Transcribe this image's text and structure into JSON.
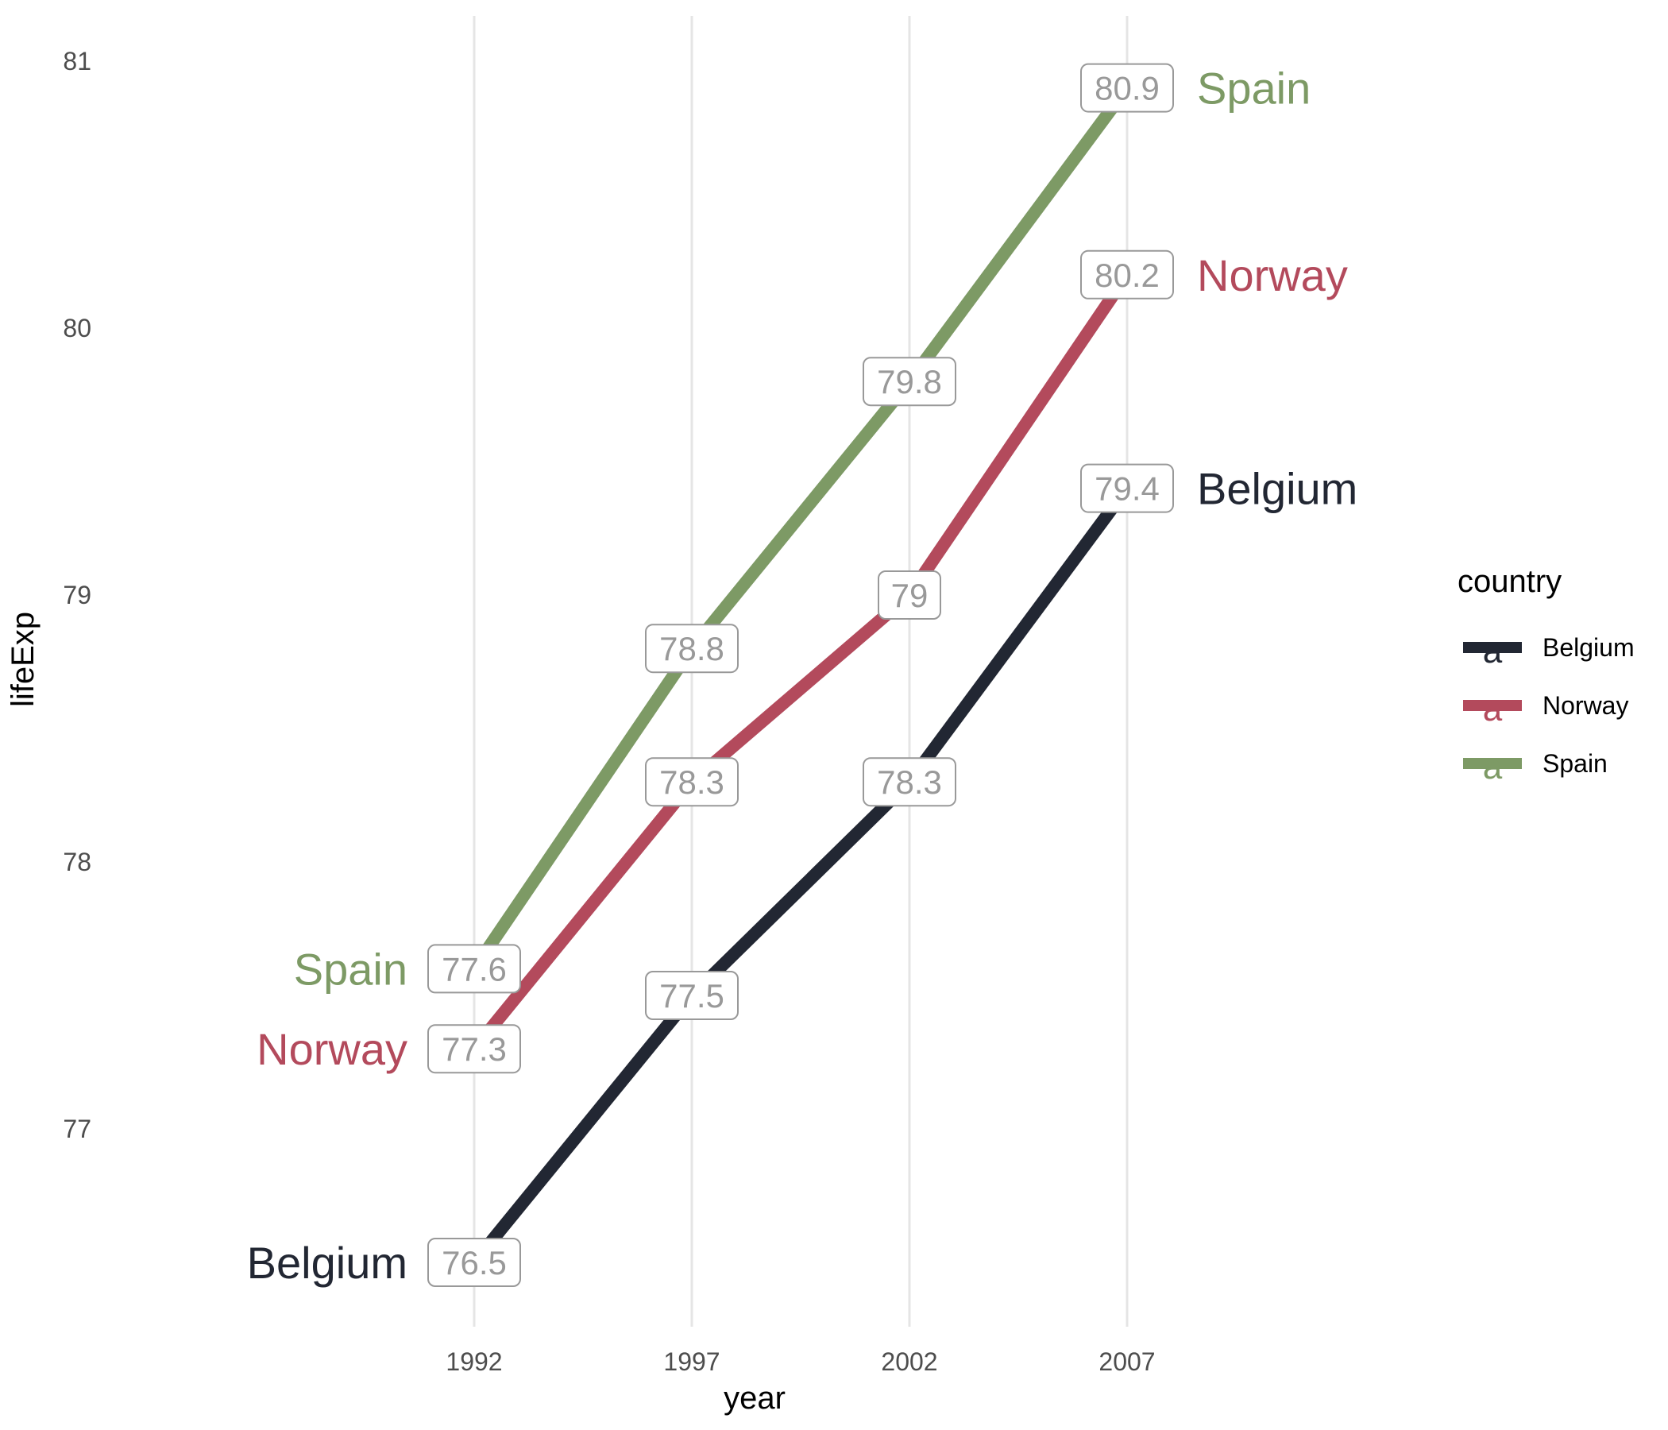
{
  "chart_data": {
    "type": "line",
    "title": "",
    "xlabel": "year",
    "ylabel": "lifeExp",
    "x": [
      1992,
      1997,
      2002,
      2007
    ],
    "x_ticks": [
      "1992",
      "1997",
      "2002",
      "2007"
    ],
    "y_ticks": [
      77,
      78,
      79,
      80,
      81
    ],
    "ylim": [
      76.3,
      81.2
    ],
    "grid": "vertical major gridlines only",
    "legend": {
      "title": "country",
      "placement": "right",
      "entries": [
        "Belgium",
        "Norway",
        "Spain"
      ],
      "key_glyph": "a"
    },
    "series": [
      {
        "name": "Belgium",
        "color": "#222733",
        "values": [
          76.5,
          77.5,
          78.3,
          79.4
        ],
        "value_labels": [
          "76.5",
          "77.5",
          "78.3",
          "79.4"
        ]
      },
      {
        "name": "Norway",
        "color": "#B34A5C",
        "values": [
          77.3,
          78.3,
          79.0,
          80.2
        ],
        "value_labels": [
          "77.3",
          "78.3",
          "79",
          "80.2"
        ]
      },
      {
        "name": "Spain",
        "color": "#7D9A65",
        "values": [
          77.6,
          78.8,
          79.8,
          80.9
        ],
        "value_labels": [
          "77.6",
          "78.8",
          "79.8",
          "80.9"
        ]
      }
    ]
  }
}
